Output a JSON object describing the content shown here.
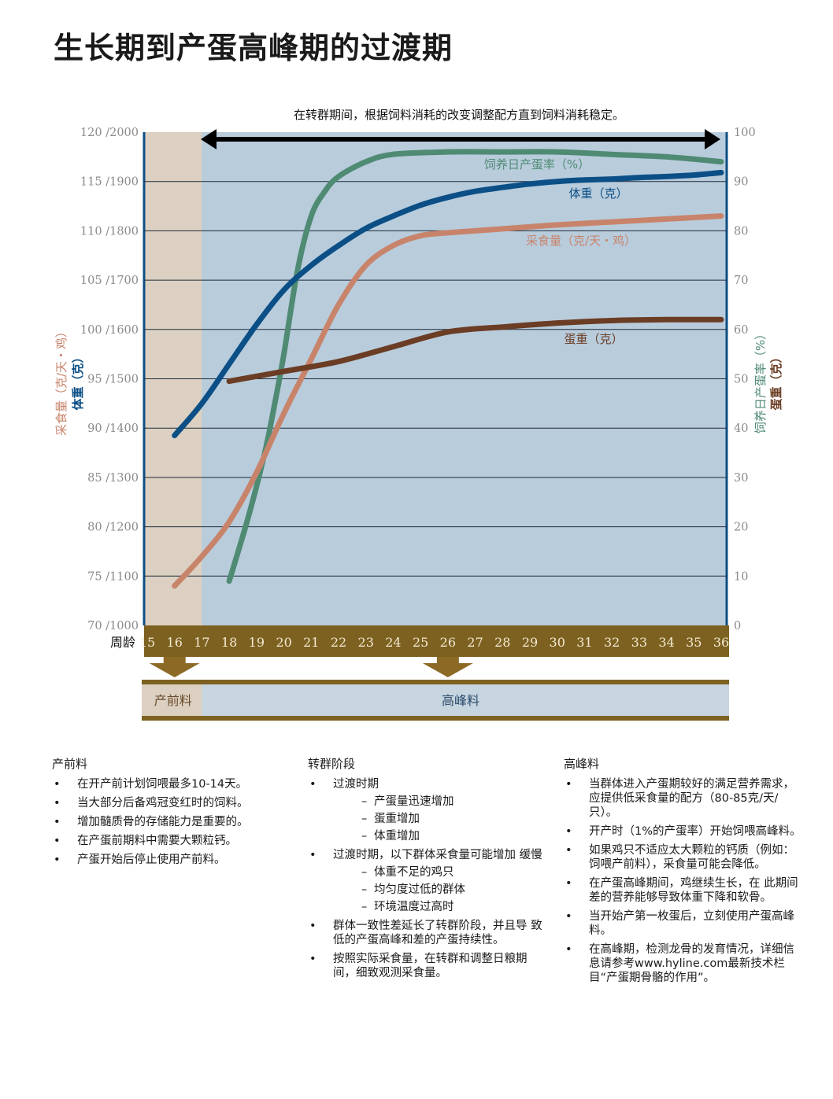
{
  "title": "生长期到产蛋高峰期的过渡期",
  "chart_data": {
    "type": "line",
    "annotation": "在转群期间，根据饲料消耗的改变调整配方直到饲料消耗稳定。",
    "xlabel": "周龄",
    "x_ticks": [
      "15",
      "16",
      "17",
      "18",
      "19",
      "20",
      "21",
      "22",
      "23",
      "24",
      "25",
      "26",
      "27",
      "28",
      "29",
      "30",
      "31",
      "32",
      "33",
      "34",
      "35",
      "36"
    ],
    "xlim": [
      15,
      36
    ],
    "left_axis": {
      "label_feed": "采食量（克/天・鸡）",
      "label_weight": "体重（克）",
      "ticks": [
        "70 /1000",
        "75 /1100",
        "80 /1200",
        "85 /1300",
        "90 /1400",
        "95 /1500",
        "100 /1600",
        "105 /1700",
        "110 /1800",
        "115 /1900",
        "120 /2000"
      ],
      "feed_range": [
        70,
        120
      ],
      "weight_range": [
        1000,
        2000
      ]
    },
    "right_axis": {
      "label_rate": "饲养日产蛋率（%）",
      "label_eggweight": "蛋重（克）",
      "ticks": [
        "0",
        "10",
        "20",
        "30",
        "40",
        "50",
        "60",
        "70",
        "80",
        "90",
        "100"
      ],
      "range": [
        0,
        100
      ]
    },
    "series": [
      {
        "name": "饲养日产蛋率（%）",
        "axis": "right",
        "color": "#4f8a73",
        "x": [
          18,
          18.7,
          19.3,
          19.7,
          20,
          20.5,
          21,
          21.5,
          22,
          23,
          24,
          26,
          28,
          30,
          32,
          34,
          36
        ],
        "y": [
          9,
          22,
          35,
          46,
          55,
          72,
          83,
          88,
          91,
          94,
          95.5,
          96,
          96,
          96,
          95.5,
          95,
          94
        ]
      },
      {
        "name": "体重（克）",
        "axis": "weight",
        "color": "#0b4f86",
        "x": [
          16,
          17,
          18,
          19,
          20,
          21,
          22,
          23,
          24,
          25,
          26,
          27,
          28,
          29,
          30,
          31,
          32,
          33,
          34,
          35,
          36
        ],
        "y": [
          1385,
          1450,
          1530,
          1610,
          1680,
          1730,
          1770,
          1805,
          1830,
          1852,
          1868,
          1880,
          1888,
          1895,
          1900,
          1903,
          1905,
          1908,
          1910,
          1913,
          1918
        ]
      },
      {
        "name": "采食量（克/天・鸡）",
        "axis": "feed",
        "color": "#c8846b",
        "x": [
          16,
          17,
          18,
          19,
          20,
          21,
          22,
          23,
          24,
          25,
          26,
          27,
          28,
          29,
          30,
          32,
          34,
          36
        ],
        "y": [
          74,
          77,
          80.5,
          85.5,
          91.5,
          97,
          102.5,
          106.5,
          108.5,
          109.5,
          109.8,
          110,
          110.2,
          110.4,
          110.6,
          110.9,
          111.2,
          111.5
        ]
      },
      {
        "name": "蛋重（克）",
        "axis": "right",
        "color": "#6b3d24",
        "x": [
          18,
          20,
          22,
          24,
          26,
          28,
          30,
          32,
          34,
          36
        ],
        "y": [
          49.5,
          51.5,
          53.5,
          56.5,
          59.5,
          60.5,
          61.3,
          61.8,
          62,
          62
        ]
      }
    ],
    "series_labels": [
      "饲养日产蛋率（%）",
      "体重（克）",
      "采食量（克/天・鸡）",
      "蛋重（克）"
    ],
    "grid": true,
    "legend": "inline labels"
  },
  "feed_phases": {
    "prelay_label": "产前料",
    "peak_label": "高峰料"
  },
  "columns": [
    {
      "heading": "产前料",
      "items": [
        {
          "text": "在开产前计划饲喂最多10-14天。"
        },
        {
          "text": "当大部分后备鸡冠变红时的饲料。"
        },
        {
          "text": "增加髓质骨的存储能力是重要的。"
        },
        {
          "text": "在产蛋前期料中需要大颗粒钙。"
        },
        {
          "text": "产蛋开始后停止使用产前料。"
        }
      ]
    },
    {
      "heading": "转群阶段",
      "items": [
        {
          "text": "过渡时期",
          "sub": [
            "产蛋量迅速增加",
            "蛋重增加",
            "体重增加"
          ]
        },
        {
          "text": "过渡时期，以下群体采食量可能增加 缓慢",
          "sub": [
            "体重不足的鸡只",
            "均匀度过低的群体",
            "环境温度过高时"
          ]
        },
        {
          "text": "群体一致性差延长了转群阶段，并且导 致低的产蛋高峰和差的产蛋持续性。"
        },
        {
          "text": "按照实际采食量，在转群和调整日粮期 间，细致观测采食量。"
        }
      ]
    },
    {
      "heading": "高峰料",
      "items": [
        {
          "text": "当群体进入产蛋期较好的满足营养需求，应提供低采食量的配方（80-85克/天/只）。"
        },
        {
          "text": "开产时（1%的产蛋率）开始饲喂高峰料。"
        },
        {
          "text": "如果鸡只不适应太大颗粒的钙质（例如：饲喂产前料），采食量可能会降低。"
        },
        {
          "text": "在产蛋高峰期间，鸡继续生长，在 此期间差的营养能够导致体重下降和软骨。"
        },
        {
          "text": "当开始产第一枚蛋后，立刻使用产蛋高峰料。"
        },
        {
          "text": "在高峰期，检测龙骨的发育情况，详细信息请参考www.hyline.com最新技术栏目“产蛋期骨骼的作用”。"
        }
      ]
    }
  ],
  "colors": {
    "plot_bg": "#b8ccdc",
    "prelay_bg": "#dbd0c1",
    "axis_band": "#7d6120",
    "feed_band_bg": "#c7d5e0",
    "phase_arrow": "#8c6a26"
  }
}
